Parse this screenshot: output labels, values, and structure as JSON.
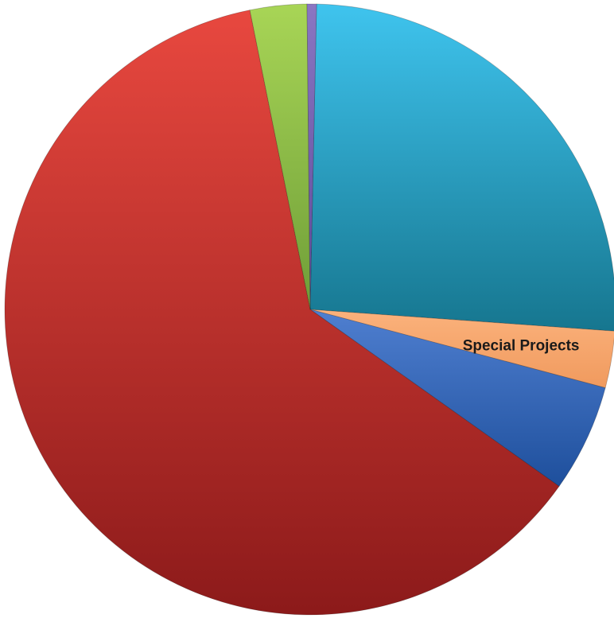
{
  "chart_data": {
    "type": "pie",
    "title": "",
    "slices": [
      {
        "label": "",
        "value": 25.8,
        "color_top": "#3fc4ee",
        "color_bottom": "#16768f"
      },
      {
        "label": "Special Projects",
        "value": 3.0,
        "color_top": "#fbb27c",
        "color_bottom": "#f09a5e"
      },
      {
        "label": "",
        "value": 5.7,
        "color_top": "#4f7fd0",
        "color_bottom": "#1e4f9c"
      },
      {
        "label": "",
        "value": 62.0,
        "color_top": "#e8483f",
        "color_bottom": "#8c1a1a"
      },
      {
        "label": "",
        "value": 3.0,
        "color_top": "#a8d556",
        "color_bottom": "#6f9e38"
      },
      {
        "label": "",
        "value": 0.5,
        "color_top": "#8a76c2",
        "color_bottom": "#5e4a99"
      }
    ],
    "start_angle_deg": 1.2,
    "direction": "clockwise",
    "legend": "none"
  }
}
